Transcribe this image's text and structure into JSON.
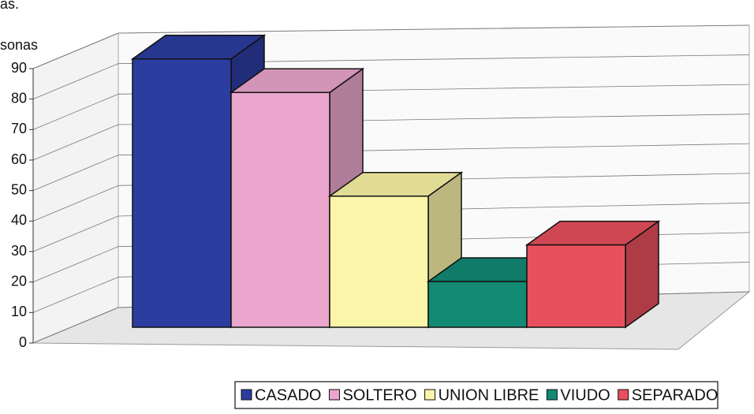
{
  "chart_data": {
    "type": "bar3d",
    "subtitle": "as.",
    "y_label": "sonas",
    "categories": [
      "CASADO",
      "SOLTERO",
      "UNION LIBRE",
      "VIUDO",
      "SEPARADO"
    ],
    "values": [
      88,
      77,
      43,
      15,
      27
    ],
    "colors": [
      "#2c3da0",
      "#eaa6cc",
      "#faf5a8",
      "#128a74",
      "#e8505e"
    ],
    "ylim": [
      0,
      90
    ],
    "yticks": [
      0,
      10,
      20,
      30,
      40,
      50,
      60,
      70,
      80,
      90
    ],
    "grid": true,
    "legend": "bottom"
  }
}
